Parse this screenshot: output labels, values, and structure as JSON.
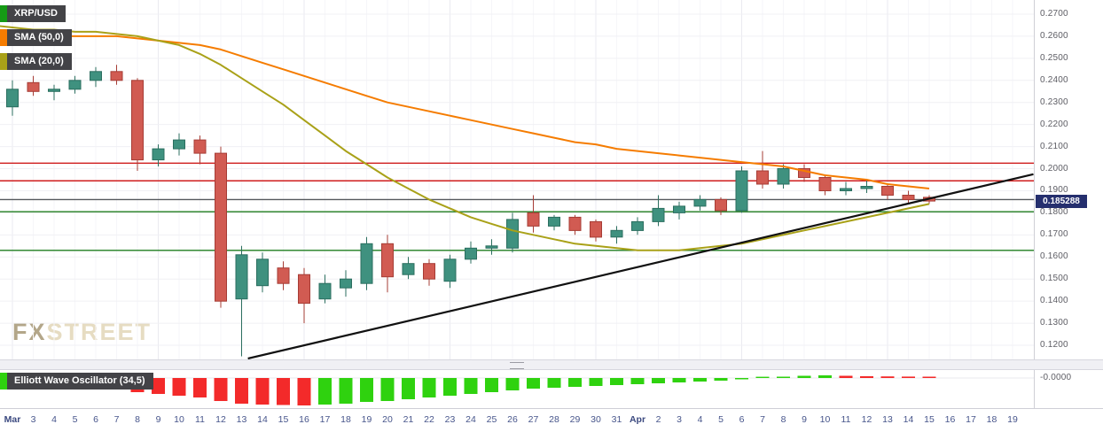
{
  "legend": {
    "symbol": {
      "label": "XRP/USD",
      "chip_color": "#159a15"
    },
    "indicators": [
      {
        "label": "SMA (50,0)",
        "chip_color": "#f57c00"
      },
      {
        "label": "SMA (20,0)",
        "chip_color": "#a9a118"
      }
    ],
    "oscillator": {
      "label": "Elliott Wave Oscillator (34,5)",
      "chip_color": "#2fd20f"
    }
  },
  "watermark": {
    "brand_first": "FX",
    "brand_rest": "STREET"
  },
  "price_badge": {
    "value": "0.185288",
    "bg_color": "#252f6e"
  },
  "axes": {
    "price_ticks": [
      "0.2700",
      "0.2600",
      "0.2500",
      "0.2400",
      "0.2300",
      "0.2200",
      "0.2100",
      "0.2000",
      "0.1900",
      "0.1800",
      "0.1700",
      "0.1600",
      "0.1500",
      "0.1400",
      "0.1300",
      "0.1200"
    ],
    "time_ticks": [
      "Mar",
      "3",
      "4",
      "5",
      "6",
      "7",
      "8",
      "9",
      "10",
      "11",
      "12",
      "13",
      "14",
      "15",
      "16",
      "17",
      "18",
      "19",
      "20",
      "21",
      "22",
      "23",
      "24",
      "25",
      "26",
      "27",
      "28",
      "29",
      "30",
      "31",
      "Apr",
      "2",
      "3",
      "4",
      "5",
      "6",
      "7",
      "8",
      "9",
      "10",
      "11",
      "12",
      "13",
      "14",
      "15",
      "16",
      "17",
      "18",
      "19"
    ],
    "oscillator_ticks": [
      "-0.0000"
    ]
  },
  "chart_data": [
    {
      "type": "candlestick",
      "title": "XRP/USD",
      "ylim": [
        0.12,
        0.27
      ],
      "last_price": 0.185288,
      "colors": {
        "up": "#3f917f",
        "up_border": "#2b6e5f",
        "down": "#d15b52",
        "down_border": "#a63c35"
      },
      "ohlc": [
        [
          "Mar 1",
          0.234,
          0.238,
          0.222,
          0.226
        ],
        [
          "Mar 2",
          0.228,
          0.24,
          0.224,
          0.236
        ],
        [
          "Mar 3",
          0.239,
          0.242,
          0.233,
          0.235
        ],
        [
          "Mar 4",
          0.235,
          0.238,
          0.231,
          0.236
        ],
        [
          "Mar 5",
          0.236,
          0.242,
          0.234,
          0.24
        ],
        [
          "Mar 6",
          0.24,
          0.246,
          0.237,
          0.244
        ],
        [
          "Mar 7",
          0.244,
          0.247,
          0.238,
          0.24
        ],
        [
          "Mar 8",
          0.24,
          0.241,
          0.199,
          0.204
        ],
        [
          "Mar 9",
          0.204,
          0.211,
          0.201,
          0.209
        ],
        [
          "Mar 10",
          0.209,
          0.216,
          0.206,
          0.213
        ],
        [
          "Mar 11",
          0.213,
          0.215,
          0.202,
          0.207
        ],
        [
          "Mar 12",
          0.207,
          0.21,
          0.137,
          0.14
        ],
        [
          "Mar 13",
          0.141,
          0.165,
          0.115,
          0.161
        ],
        [
          "Mar 14",
          0.147,
          0.162,
          0.144,
          0.159
        ],
        [
          "Mar 15",
          0.155,
          0.158,
          0.145,
          0.148
        ],
        [
          "Mar 16",
          0.152,
          0.155,
          0.13,
          0.139
        ],
        [
          "Mar 17",
          0.141,
          0.152,
          0.139,
          0.148
        ],
        [
          "Mar 18",
          0.146,
          0.154,
          0.142,
          0.15
        ],
        [
          "Mar 19",
          0.148,
          0.169,
          0.145,
          0.166
        ],
        [
          "Mar 20",
          0.166,
          0.17,
          0.144,
          0.151
        ],
        [
          "Mar 21",
          0.152,
          0.16,
          0.15,
          0.157
        ],
        [
          "Mar 22",
          0.157,
          0.159,
          0.147,
          0.15
        ],
        [
          "Mar 23",
          0.149,
          0.161,
          0.146,
          0.159
        ],
        [
          "Mar 24",
          0.159,
          0.167,
          0.157,
          0.164
        ],
        [
          "Mar 25",
          0.164,
          0.168,
          0.161,
          0.165
        ],
        [
          "Mar 26",
          0.164,
          0.18,
          0.162,
          0.177
        ],
        [
          "Mar 27",
          0.18,
          0.188,
          0.171,
          0.174
        ],
        [
          "Mar 28",
          0.174,
          0.179,
          0.172,
          0.178
        ],
        [
          "Mar 29",
          0.178,
          0.179,
          0.17,
          0.172
        ],
        [
          "Mar 30",
          0.176,
          0.177,
          0.167,
          0.169
        ],
        [
          "Mar 31",
          0.169,
          0.174,
          0.166,
          0.172
        ],
        [
          "Apr 1",
          0.172,
          0.178,
          0.17,
          0.176
        ],
        [
          "Apr 2",
          0.176,
          0.188,
          0.174,
          0.182
        ],
        [
          "Apr 3",
          0.18,
          0.185,
          0.177,
          0.183
        ],
        [
          "Apr 4",
          0.183,
          0.188,
          0.181,
          0.186
        ],
        [
          "Apr 5",
          0.186,
          0.187,
          0.179,
          0.181
        ],
        [
          "Apr 6",
          0.181,
          0.201,
          0.18,
          0.199
        ],
        [
          "Apr 7",
          0.199,
          0.208,
          0.191,
          0.193
        ],
        [
          "Apr 8",
          0.193,
          0.202,
          0.191,
          0.2
        ],
        [
          "Apr 9",
          0.2,
          0.202,
          0.194,
          0.196
        ],
        [
          "Apr 10",
          0.196,
          0.197,
          0.188,
          0.19
        ],
        [
          "Apr 11",
          0.19,
          0.194,
          0.188,
          0.191
        ],
        [
          "Apr 12",
          0.191,
          0.195,
          0.189,
          0.192
        ],
        [
          "Apr 13",
          0.192,
          0.193,
          0.186,
          0.188
        ],
        [
          "Apr 14",
          0.188,
          0.19,
          0.184,
          0.186
        ],
        [
          "Apr 15",
          0.187,
          0.188,
          0.184,
          0.1853
        ]
      ],
      "overlays": [
        {
          "name": "SMA (50,0)",
          "type": "line",
          "color": "#f57c00",
          "values": [
            0.259,
            0.259,
            0.259,
            0.26,
            0.26,
            0.26,
            0.26,
            0.259,
            0.258,
            0.257,
            0.256,
            0.254,
            0.251,
            0.248,
            0.245,
            0.242,
            0.239,
            0.236,
            0.233,
            0.23,
            0.228,
            0.226,
            0.224,
            0.222,
            0.22,
            0.218,
            0.216,
            0.214,
            0.212,
            0.211,
            0.209,
            0.208,
            0.207,
            0.206,
            0.205,
            0.204,
            0.203,
            0.202,
            0.201,
            0.199,
            0.197,
            0.196,
            0.195,
            0.193,
            0.192,
            0.191
          ]
        },
        {
          "name": "SMA (20,0)",
          "type": "line",
          "color": "#a9a118",
          "values": [
            0.265,
            0.264,
            0.263,
            0.263,
            0.262,
            0.262,
            0.261,
            0.26,
            0.258,
            0.256,
            0.252,
            0.247,
            0.241,
            0.235,
            0.229,
            0.222,
            0.215,
            0.208,
            0.202,
            0.196,
            0.191,
            0.186,
            0.182,
            0.178,
            0.175,
            0.172,
            0.17,
            0.168,
            0.166,
            0.165,
            0.164,
            0.163,
            0.163,
            0.163,
            0.164,
            0.165,
            0.166,
            0.168,
            0.17,
            0.172,
            0.174,
            0.176,
            0.178,
            0.18,
            0.182,
            0.184
          ]
        }
      ],
      "levels": [
        {
          "price": 0.2025,
          "color": "#cf1d1d"
        },
        {
          "price": 0.1945,
          "color": "#cf1d1d"
        },
        {
          "price": 0.186,
          "color": "#54585c"
        },
        {
          "price": 0.1805,
          "color": "#1e7d1e"
        },
        {
          "price": 0.163,
          "color": "#1e7d1e"
        }
      ],
      "trendline": {
        "from": {
          "index": 12.3,
          "price": 0.114
        },
        "to": {
          "index": 50,
          "price": 0.1975
        },
        "color": "#111111"
      }
    },
    {
      "type": "bar",
      "title": "Elliott Wave Oscillator (34,5)",
      "colors": {
        "up": "#2fd20f",
        "down": "#f32a2a"
      },
      "zero_line": 0,
      "y_ticks": [
        "-0.0000"
      ],
      "values": [
        -0.0075,
        -0.008,
        -0.009,
        -0.01,
        -0.011,
        -0.012,
        -0.013,
        -0.016,
        -0.018,
        -0.02,
        -0.022,
        -0.026,
        -0.029,
        -0.03,
        -0.0305,
        -0.031,
        -0.03,
        -0.029,
        -0.027,
        -0.026,
        -0.024,
        -0.022,
        -0.02,
        -0.018,
        -0.016,
        -0.014,
        -0.012,
        -0.011,
        -0.01,
        -0.009,
        -0.008,
        -0.007,
        -0.006,
        -0.005,
        -0.004,
        -0.003,
        -0.0015,
        0.0005,
        0.0015,
        0.0025,
        0.003,
        0.0025,
        0.002,
        0.0018,
        0.0016,
        0.0015
      ]
    }
  ]
}
